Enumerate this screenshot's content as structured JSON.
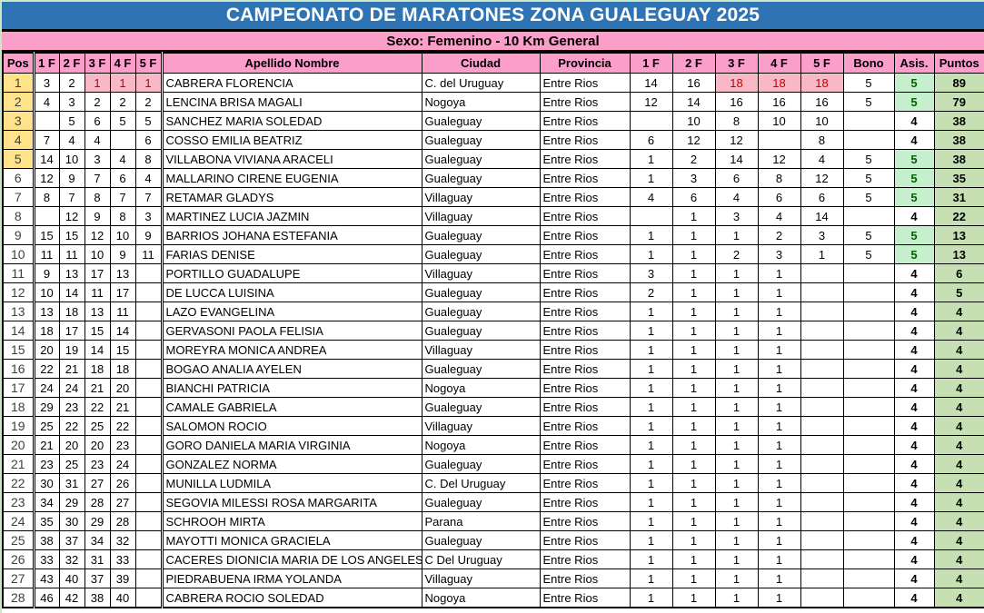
{
  "title": "CAMPEONATO DE MARATONES ZONA GUALEGUAY 2025",
  "subtitle": "Sexo: Femenino - 10 Km General",
  "columns": [
    "Pos",
    "1 F",
    "2 F",
    "3 F",
    "4 F",
    "5 F",
    "Apellido Nombre",
    "Ciudad",
    "Provincia",
    "1 F",
    "2 F",
    "3 F",
    "4 F",
    "5 F",
    "Bono",
    "Asis.",
    "Puntos"
  ],
  "colors": {
    "title_bg": "#2E74B5",
    "title_text": "#FFFFFF",
    "header_pink": "#FB9EC9",
    "highlight_pink_bg": "#F8B8C6",
    "highlight_red_text": "#C00000",
    "pos_yellow": "#FFE38A",
    "asis_green_bg": "#C6EFCE",
    "asis_green_text": "#006100",
    "puntos_green_bg": "#C6E0B4",
    "edge_green": "#CBE7C6",
    "grid_border": "#000000"
  },
  "rows": [
    {
      "pos": "1",
      "left": [
        "3",
        "2",
        "1",
        "1",
        "1"
      ],
      "left_hl": [
        2,
        3,
        4
      ],
      "name": "CABRERA FLORENCIA",
      "city": "C. del Uruguay",
      "province": "Entre Rios",
      "right": [
        "14",
        "16",
        "18",
        "18",
        "18"
      ],
      "right_hl": [
        2,
        3,
        4
      ],
      "bono": "5",
      "asis": "5",
      "puntos": "89"
    },
    {
      "pos": "2",
      "left": [
        "4",
        "3",
        "2",
        "2",
        "2"
      ],
      "name": "LENCINA BRISA MAGALI",
      "city": "Nogoya",
      "province": "Entre Rios",
      "right": [
        "12",
        "14",
        "16",
        "16",
        "16"
      ],
      "bono": "5",
      "asis": "5",
      "puntos": "79"
    },
    {
      "pos": "3",
      "left": [
        "",
        "5",
        "6",
        "5",
        "5"
      ],
      "name": "SANCHEZ MARIA SOLEDAD",
      "city": "Gualeguay",
      "province": "Entre Rios",
      "right": [
        "",
        "10",
        "8",
        "10",
        "10"
      ],
      "bono": "",
      "asis": "4",
      "puntos": "38"
    },
    {
      "pos": "4",
      "left": [
        "7",
        "4",
        "4",
        "",
        "6"
      ],
      "name": "COSSO EMILIA BEATRIZ",
      "city": "Gualeguay",
      "province": "Entre Rios",
      "right": [
        "6",
        "12",
        "12",
        "",
        "8"
      ],
      "bono": "",
      "asis": "4",
      "puntos": "38"
    },
    {
      "pos": "5",
      "left": [
        "14",
        "10",
        "3",
        "4",
        "8"
      ],
      "name": "VILLABONA VIVIANA ARACELI",
      "city": "Gualeguay",
      "province": "Entre Rios",
      "right": [
        "1",
        "2",
        "14",
        "12",
        "4"
      ],
      "bono": "5",
      "asis": "5",
      "puntos": "38"
    },
    {
      "pos": "6",
      "left": [
        "12",
        "9",
        "7",
        "6",
        "4"
      ],
      "name": "MALLARINO CIRENE EUGENIA",
      "city": "Gualeguay",
      "province": "Entre Rios",
      "right": [
        "1",
        "3",
        "6",
        "8",
        "12"
      ],
      "bono": "5",
      "asis": "5",
      "puntos": "35"
    },
    {
      "pos": "7",
      "left": [
        "8",
        "7",
        "8",
        "7",
        "7"
      ],
      "name": "RETAMAR GLADYS",
      "city": "Villaguay",
      "province": "Entre Rios",
      "right": [
        "4",
        "6",
        "4",
        "6",
        "6"
      ],
      "bono": "5",
      "asis": "5",
      "puntos": "31"
    },
    {
      "pos": "8",
      "left": [
        "",
        "12",
        "9",
        "8",
        "3"
      ],
      "name": "MARTINEZ LUCIA JAZMIN",
      "city": "Villaguay",
      "province": "Entre Rios",
      "right": [
        "",
        "1",
        "3",
        "4",
        "14"
      ],
      "bono": "",
      "asis": "4",
      "puntos": "22"
    },
    {
      "pos": "9",
      "left": [
        "15",
        "15",
        "12",
        "10",
        "9"
      ],
      "name": "BARRIOS JOHANA ESTEFANIA",
      "city": "Gualeguay",
      "province": "Entre Rios",
      "right": [
        "1",
        "1",
        "1",
        "2",
        "3"
      ],
      "bono": "5",
      "asis": "5",
      "puntos": "13"
    },
    {
      "pos": "10",
      "left": [
        "11",
        "11",
        "10",
        "9",
        "11"
      ],
      "name": "FARIAS DENISE",
      "city": "Gualeguay",
      "province": "Entre Rios",
      "right": [
        "1",
        "1",
        "2",
        "3",
        "1"
      ],
      "bono": "5",
      "asis": "5",
      "puntos": "13"
    },
    {
      "pos": "11",
      "left": [
        "9",
        "13",
        "17",
        "13",
        ""
      ],
      "name": "PORTILLO GUADALUPE",
      "city": "Villaguay",
      "province": "Entre Rios",
      "right": [
        "3",
        "1",
        "1",
        "1",
        ""
      ],
      "bono": "",
      "asis": "4",
      "puntos": "6"
    },
    {
      "pos": "12",
      "left": [
        "10",
        "14",
        "11",
        "17",
        ""
      ],
      "name": "DE LUCCA LUISINA",
      "city": "Gualeguay",
      "province": "Entre Rios",
      "right": [
        "2",
        "1",
        "1",
        "1",
        ""
      ],
      "bono": "",
      "asis": "4",
      "puntos": "5"
    },
    {
      "pos": "13",
      "left": [
        "13",
        "18",
        "13",
        "11",
        ""
      ],
      "name": "LAZO EVANGELINA",
      "city": "Gualeguay",
      "province": "Entre Rios",
      "right": [
        "1",
        "1",
        "1",
        "1",
        ""
      ],
      "bono": "",
      "asis": "4",
      "puntos": "4"
    },
    {
      "pos": "14",
      "left": [
        "18",
        "17",
        "15",
        "14",
        ""
      ],
      "name": "GERVASONI PAOLA FELISIA",
      "city": "Gualeguay",
      "province": "Entre Rios",
      "right": [
        "1",
        "1",
        "1",
        "1",
        ""
      ],
      "bono": "",
      "asis": "4",
      "puntos": "4"
    },
    {
      "pos": "15",
      "left": [
        "20",
        "19",
        "14",
        "15",
        ""
      ],
      "name": "MOREYRA MONICA ANDREA",
      "city": "Villaguay",
      "province": "Entre Rios",
      "right": [
        "1",
        "1",
        "1",
        "1",
        ""
      ],
      "bono": "",
      "asis": "4",
      "puntos": "4"
    },
    {
      "pos": "16",
      "left": [
        "22",
        "21",
        "18",
        "18",
        ""
      ],
      "name": "BOGAO ANALIA AYELEN",
      "city": "Gualeguay",
      "province": "Entre Rios",
      "right": [
        "1",
        "1",
        "1",
        "1",
        ""
      ],
      "bono": "",
      "asis": "4",
      "puntos": "4"
    },
    {
      "pos": "17",
      "left": [
        "24",
        "24",
        "21",
        "20",
        ""
      ],
      "name": "BIANCHI PATRICIA",
      "city": "Nogoya",
      "province": "Entre Rios",
      "right": [
        "1",
        "1",
        "1",
        "1",
        ""
      ],
      "bono": "",
      "asis": "4",
      "puntos": "4"
    },
    {
      "pos": "18",
      "left": [
        "29",
        "23",
        "22",
        "21",
        ""
      ],
      "name": "CAMALE GABRIELA",
      "city": "Gualeguay",
      "province": "Entre Rios",
      "right": [
        "1",
        "1",
        "1",
        "1",
        ""
      ],
      "bono": "",
      "asis": "4",
      "puntos": "4"
    },
    {
      "pos": "19",
      "left": [
        "25",
        "22",
        "25",
        "22",
        ""
      ],
      "name": "SALOMON ROCIO",
      "city": "Villaguay",
      "province": "Entre Rios",
      "right": [
        "1",
        "1",
        "1",
        "1",
        ""
      ],
      "bono": "",
      "asis": "4",
      "puntos": "4"
    },
    {
      "pos": "20",
      "left": [
        "21",
        "20",
        "20",
        "23",
        ""
      ],
      "name": "GORO DANIELA MARIA VIRGINIA",
      "city": "Nogoya",
      "province": "Entre Rios",
      "right": [
        "1",
        "1",
        "1",
        "1",
        ""
      ],
      "bono": "",
      "asis": "4",
      "puntos": "4"
    },
    {
      "pos": "21",
      "left": [
        "23",
        "25",
        "23",
        "24",
        ""
      ],
      "name": "GONZALEZ NORMA",
      "city": "Gualeguay",
      "province": "Entre Rios",
      "right": [
        "1",
        "1",
        "1",
        "1",
        ""
      ],
      "bono": "",
      "asis": "4",
      "puntos": "4"
    },
    {
      "pos": "22",
      "left": [
        "30",
        "31",
        "27",
        "26",
        ""
      ],
      "name": "MUNILLA LUDMILA",
      "city": "C. Del Uruguay",
      "province": "Entre Rios",
      "right": [
        "1",
        "1",
        "1",
        "1",
        ""
      ],
      "bono": "",
      "asis": "4",
      "puntos": "4"
    },
    {
      "pos": "23",
      "left": [
        "34",
        "29",
        "28",
        "27",
        ""
      ],
      "name": "SEGOVIA MILESSI ROSA MARGARITA",
      "city": "Gualeguay",
      "province": "Entre Rios",
      "right": [
        "1",
        "1",
        "1",
        "1",
        ""
      ],
      "bono": "",
      "asis": "4",
      "puntos": "4"
    },
    {
      "pos": "24",
      "left": [
        "35",
        "30",
        "29",
        "28",
        ""
      ],
      "name": "SCHROOH MIRTA",
      "city": "Parana",
      "province": "Entre Rios",
      "right": [
        "1",
        "1",
        "1",
        "1",
        ""
      ],
      "bono": "",
      "asis": "4",
      "puntos": "4"
    },
    {
      "pos": "25",
      "left": [
        "38",
        "37",
        "34",
        "32",
        ""
      ],
      "name": "MAYOTTI MONICA GRACIELA",
      "city": "Gualeguay",
      "province": "Entre Rios",
      "right": [
        "1",
        "1",
        "1",
        "1",
        ""
      ],
      "bono": "",
      "asis": "4",
      "puntos": "4"
    },
    {
      "pos": "26",
      "left": [
        "33",
        "32",
        "31",
        "33",
        ""
      ],
      "name": "CACERES DIONICIA MARIA DE LOS ANGELES",
      "city": "C Del Uruguay",
      "province": "Entre Rios",
      "right": [
        "1",
        "1",
        "1",
        "1",
        ""
      ],
      "bono": "",
      "asis": "4",
      "puntos": "4"
    },
    {
      "pos": "27",
      "left": [
        "43",
        "40",
        "37",
        "39",
        ""
      ],
      "name": "PIEDRABUENA IRMA YOLANDA",
      "city": "Villaguay",
      "province": "Entre Rios",
      "right": [
        "1",
        "1",
        "1",
        "1",
        ""
      ],
      "bono": "",
      "asis": "4",
      "puntos": "4"
    },
    {
      "pos": "28",
      "left": [
        "46",
        "42",
        "38",
        "40",
        ""
      ],
      "name": "CABRERA ROCIO SOLEDAD",
      "city": "Nogoya",
      "province": "Entre Rios",
      "right": [
        "1",
        "1",
        "1",
        "1",
        ""
      ],
      "bono": "",
      "asis": "4",
      "puntos": "4"
    }
  ]
}
